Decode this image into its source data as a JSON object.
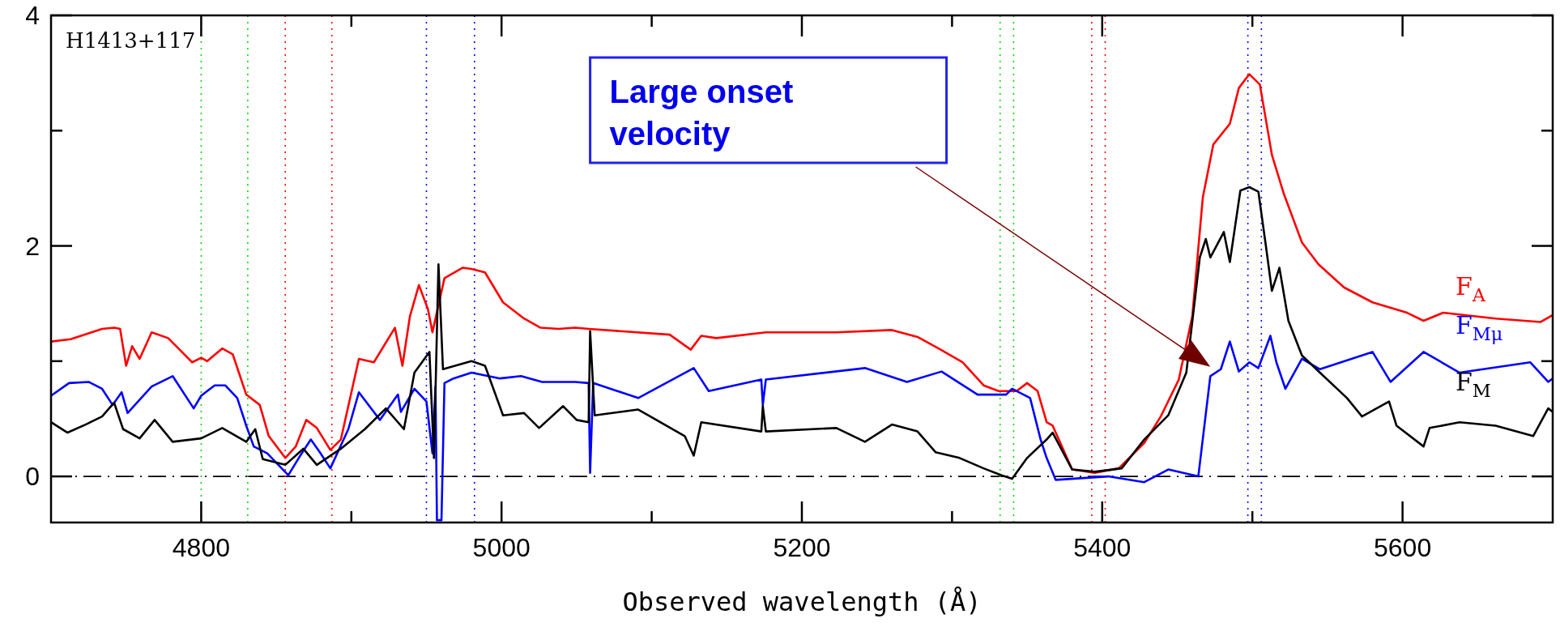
{
  "chart_data": {
    "type": "line",
    "xlabel": "Observed wavelength (Å)",
    "xlim": [
      4700,
      5700
    ],
    "ylim": [
      -0.4,
      4
    ],
    "xticks": [
      4800,
      {
        "value": 4900,
        "label": null
      },
      5000,
      {
        "value": 5100,
        "label": null
      },
      5200,
      {
        "value": 5300,
        "label": null
      },
      5400,
      {
        "value": 5500,
        "label": null
      },
      5600
    ],
    "yticks": [
      0,
      {
        "value": 1,
        "label": null
      },
      2,
      {
        "value": 3,
        "label": null
      },
      4
    ],
    "annotations": [
      "H1413+117",
      "Large onset velocity"
    ],
    "ref_lines": [
      {
        "axis": "y",
        "value": 0,
        "color": "#000000",
        "line_style": "dashdot"
      },
      {
        "axis": "x",
        "value": 4800,
        "color": "#00dd00",
        "line_style": "dotted"
      },
      {
        "axis": "x",
        "value": 4831,
        "color": "#00dd00",
        "line_style": "dotted"
      },
      {
        "axis": "x",
        "value": 4856,
        "color": "#ff0000",
        "line_style": "dotted"
      },
      {
        "axis": "x",
        "value": 4887,
        "color": "#ff0000",
        "line_style": "dotted"
      },
      {
        "axis": "x",
        "value": 4950,
        "color": "#0000ff",
        "line_style": "dotted"
      },
      {
        "axis": "x",
        "value": 4982,
        "color": "#0000ff",
        "line_style": "dotted"
      },
      {
        "axis": "x",
        "value": 5332,
        "color": "#00dd00",
        "line_style": "dotted"
      },
      {
        "axis": "x",
        "value": 5341,
        "color": "#00dd00",
        "line_style": "dotted"
      },
      {
        "axis": "x",
        "value": 5393,
        "color": "#ff0000",
        "line_style": "dotted"
      },
      {
        "axis": "x",
        "value": 5402,
        "color": "#ff0000",
        "line_style": "dotted"
      },
      {
        "axis": "x",
        "value": 5497,
        "color": "#0000ff",
        "line_style": "dotted"
      },
      {
        "axis": "x",
        "value": 5506,
        "color": "#0000ff",
        "line_style": "dotted"
      }
    ],
    "legend": false,
    "line_style": "solid",
    "marker": "none",
    "series": [
      {
        "name": "F$_{A}$",
        "color": "#ff0000",
        "x": [
          4700,
          4713,
          4734,
          4742,
          4746,
          4750,
          4754,
          4759,
          4767,
          4778,
          4794,
          4800,
          4804,
          4814,
          4821,
          4830,
          4839,
          4845,
          4856,
          4863,
          4870,
          4877,
          4886,
          4893,
          4905,
          4915,
          4929,
          4934,
          4939,
          4945,
          4951,
          4954,
          4962,
          4974,
          4980,
          4989,
          5001,
          5015,
          5026,
          5038,
          5049,
          5058,
          5112,
          5126,
          5133,
          5143,
          5176,
          5223,
          5260,
          5277,
          5291,
          5307,
          5321,
          5331,
          5343,
          5350,
          5357,
          5363,
          5367,
          5380,
          5395,
          5411,
          5428,
          5439,
          5451,
          5460,
          5467,
          5474,
          5485,
          5491,
          5498,
          5505,
          5513,
          5521,
          5533,
          5544,
          5561,
          5580,
          5603,
          5614,
          5627,
          5662,
          5692,
          5700
        ],
        "values": [
          1.17,
          1.19,
          1.28,
          1.29,
          1.28,
          0.96,
          1.13,
          1.02,
          1.25,
          1.2,
          0.99,
          1.03,
          1.0,
          1.11,
          1.06,
          0.71,
          0.62,
          0.35,
          0.16,
          0.26,
          0.49,
          0.42,
          0.23,
          0.32,
          1.02,
          0.99,
          1.29,
          0.96,
          1.39,
          1.66,
          1.45,
          1.25,
          1.72,
          1.81,
          1.8,
          1.77,
          1.51,
          1.37,
          1.29,
          1.28,
          1.29,
          1.28,
          1.23,
          1.1,
          1.22,
          1.2,
          1.25,
          1.25,
          1.27,
          1.21,
          1.11,
          0.99,
          0.79,
          0.74,
          0.74,
          0.81,
          0.74,
          0.47,
          0.44,
          0.06,
          0.03,
          0.07,
          0.29,
          0.52,
          0.84,
          1.39,
          2.42,
          2.88,
          3.06,
          3.37,
          3.49,
          3.4,
          2.79,
          2.45,
          2.03,
          1.84,
          1.64,
          1.51,
          1.42,
          1.35,
          1.42,
          1.37,
          1.34,
          1.4
        ]
      },
      {
        "name": "F$_{Mμ}$",
        "color": "#0000ff",
        "x": [
          4700,
          4712,
          4725,
          4734,
          4741,
          4747,
          4751,
          4767,
          4781,
          4795,
          4800,
          4809,
          4816,
          4824,
          4830,
          4835,
          4844,
          4858,
          4865,
          4873,
          4879,
          4886,
          4898,
          4905,
          4919,
          4931,
          4933,
          4942,
          4950,
          4954,
          4956,
          4957,
          4960,
          4962,
          4968,
          4980,
          4999,
          5013,
          5027,
          5049,
          5058,
          5059,
          5061,
          5091,
          5128,
          5138,
          5173,
          5174,
          5176,
          5242,
          5270,
          5293,
          5317,
          5336,
          5340,
          5352,
          5359,
          5363,
          5369,
          5404,
          5428,
          5444,
          5464,
          5472,
          5479,
          5485,
          5491,
          5498,
          5504,
          5512,
          5516,
          5522,
          5533,
          5545,
          5580,
          5592,
          5614,
          5638,
          5685,
          5697,
          5700
        ],
        "values": [
          0.7,
          0.81,
          0.82,
          0.76,
          0.62,
          0.73,
          0.55,
          0.78,
          0.87,
          0.59,
          0.7,
          0.79,
          0.79,
          0.68,
          0.44,
          0.26,
          0.2,
          0.01,
          0.16,
          0.32,
          0.21,
          0.07,
          0.41,
          0.73,
          0.49,
          0.71,
          0.56,
          0.76,
          0.65,
          0.2,
          0.78,
          -0.38,
          -0.38,
          0.81,
          0.85,
          0.9,
          0.85,
          0.87,
          0.82,
          0.82,
          0.81,
          0.03,
          0.81,
          0.68,
          0.94,
          0.74,
          0.84,
          0.62,
          0.84,
          0.94,
          0.82,
          0.91,
          0.71,
          0.71,
          0.76,
          0.68,
          0.32,
          0.16,
          -0.03,
          0.0,
          -0.05,
          0.06,
          0.0,
          0.87,
          0.93,
          1.17,
          0.91,
          0.99,
          0.94,
          1.22,
          0.99,
          0.76,
          1.02,
          0.93,
          1.08,
          0.82,
          1.08,
          0.9,
          0.99,
          0.82,
          0.85
        ]
      },
      {
        "name": "F$_{M}$",
        "color": "#000000",
        "x": [
          4700,
          4711,
          4723,
          4734,
          4742,
          4748,
          4759,
          4769,
          4781,
          4800,
          4814,
          4830,
          4836,
          4841,
          4856,
          4868,
          4877,
          4893,
          4909,
          4923,
          4935,
          4942,
          4952,
          4955,
          4958,
          4961,
          4980,
          4989,
          5001,
          5015,
          5025,
          5041,
          5050,
          5058,
          5059,
          5062,
          5091,
          5122,
          5128,
          5133,
          5173,
          5174,
          5176,
          5223,
          5242,
          5260,
          5277,
          5289,
          5305,
          5321,
          5333,
          5340,
          5350,
          5363,
          5367,
          5380,
          5395,
          5413,
          5428,
          5444,
          5456,
          5465,
          5469,
          5472,
          5481,
          5485,
          5492,
          5498,
          5504,
          5509,
          5513,
          5518,
          5524,
          5533,
          5545,
          5563,
          5573,
          5591,
          5596,
          5614,
          5618,
          5638,
          5662,
          5687,
          5697,
          5700
        ],
        "values": [
          0.47,
          0.38,
          0.45,
          0.52,
          0.64,
          0.41,
          0.33,
          0.49,
          0.3,
          0.33,
          0.42,
          0.3,
          0.41,
          0.15,
          0.1,
          0.24,
          0.1,
          0.24,
          0.41,
          0.59,
          0.41,
          0.9,
          1.08,
          0.16,
          1.84,
          0.93,
          1.0,
          0.96,
          0.53,
          0.55,
          0.42,
          0.61,
          0.49,
          0.47,
          1.26,
          0.53,
          0.58,
          0.35,
          0.18,
          0.47,
          0.39,
          0.61,
          0.39,
          0.42,
          0.3,
          0.45,
          0.39,
          0.21,
          0.16,
          0.07,
          0.01,
          -0.02,
          0.16,
          0.32,
          0.38,
          0.06,
          0.04,
          0.07,
          0.32,
          0.53,
          0.9,
          1.9,
          2.06,
          1.9,
          2.12,
          1.86,
          2.48,
          2.51,
          2.47,
          2.0,
          1.61,
          1.81,
          1.35,
          1.05,
          0.9,
          0.68,
          0.52,
          0.65,
          0.44,
          0.26,
          0.42,
          0.47,
          0.44,
          0.35,
          0.59,
          0.56
        ]
      }
    ]
  }
}
